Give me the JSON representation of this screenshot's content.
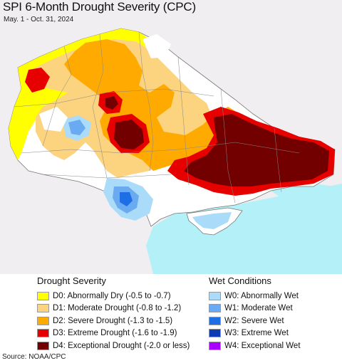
{
  "map": {
    "title": "SPI 6-Month Drought Severity (CPC)",
    "date_range": "May. 1 - Oct. 31, 2024",
    "colors": {
      "land_outside": "#f1eef1",
      "sea": "#b3f0f7",
      "neutral": "#ffffff",
      "border": "#888888"
    }
  },
  "legend": {
    "drought": {
      "heading": "Drought Severity",
      "items": [
        {
          "code": "D0",
          "label": "D0: Abnormally Dry (-0.5 to -0.7)",
          "color": "#ffff00"
        },
        {
          "code": "D1",
          "label": "D1: Moderate Drought (-0.8 to -1.2)",
          "color": "#fcd37f"
        },
        {
          "code": "D2",
          "label": "D2: Severe Drought (-1.3 to -1.5)",
          "color": "#ffaa00"
        },
        {
          "code": "D3",
          "label": "D3: Extreme Drought (-1.6 to -1.9)",
          "color": "#e60000"
        },
        {
          "code": "D4",
          "label": "D4: Exceptional Drought (-2.0 or less)",
          "color": "#730000"
        }
      ]
    },
    "wet": {
      "heading": "Wet Conditions",
      "items": [
        {
          "code": "W0",
          "label": "W0: Abnormally Wet",
          "color": "#aadcfa"
        },
        {
          "code": "W1",
          "label": "W1: Moderate Wet",
          "color": "#6aaaf0"
        },
        {
          "code": "W2",
          "label": "W2: Severe Wet",
          "color": "#1e6ee6"
        },
        {
          "code": "W3",
          "label": "W3: Extreme Wet",
          "color": "#0a3cb4"
        },
        {
          "code": "W4",
          "label": "W4: Exceptional Wet",
          "color": "#aa00ff"
        }
      ]
    }
  },
  "footer": {
    "source": "Source: NOAA/CPC"
  }
}
